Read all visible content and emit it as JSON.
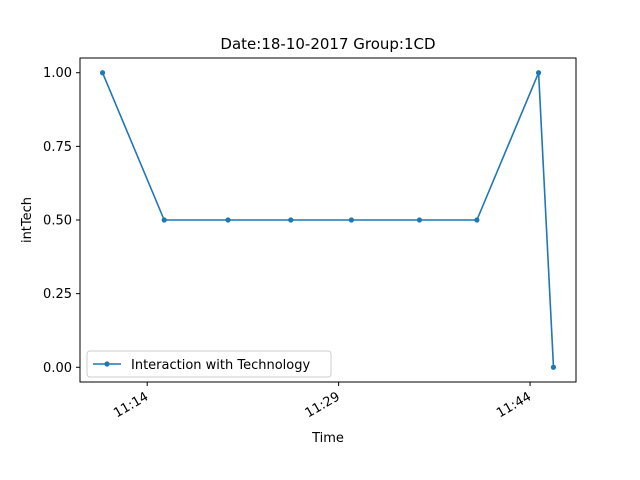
{
  "chart_data": {
    "type": "line",
    "title": "Date:18-10-2017  Group:1CD",
    "xlabel": "Time",
    "ylabel": "intTech",
    "x_ticks": [
      "11:14",
      "11:29",
      "11:44"
    ],
    "y_ticks": [
      "0.00",
      "0.25",
      "0.50",
      "0.75",
      "1.00"
    ],
    "ylim": [
      -0.05,
      1.05
    ],
    "grid": false,
    "legend_placement": "lower-left",
    "series": [
      {
        "name": "Interaction with Technology",
        "color": "#1f77b4",
        "marker": "circle",
        "x": [
          "11:10:30",
          "11:15:20",
          "11:20:20",
          "11:25:15",
          "11:30:00",
          "11:35:20",
          "11:39:50",
          "11:44:40",
          "11:45:50"
        ],
        "y": [
          1.0,
          0.5,
          0.5,
          0.5,
          0.5,
          0.5,
          0.5,
          1.0,
          0.0
        ]
      }
    ]
  }
}
